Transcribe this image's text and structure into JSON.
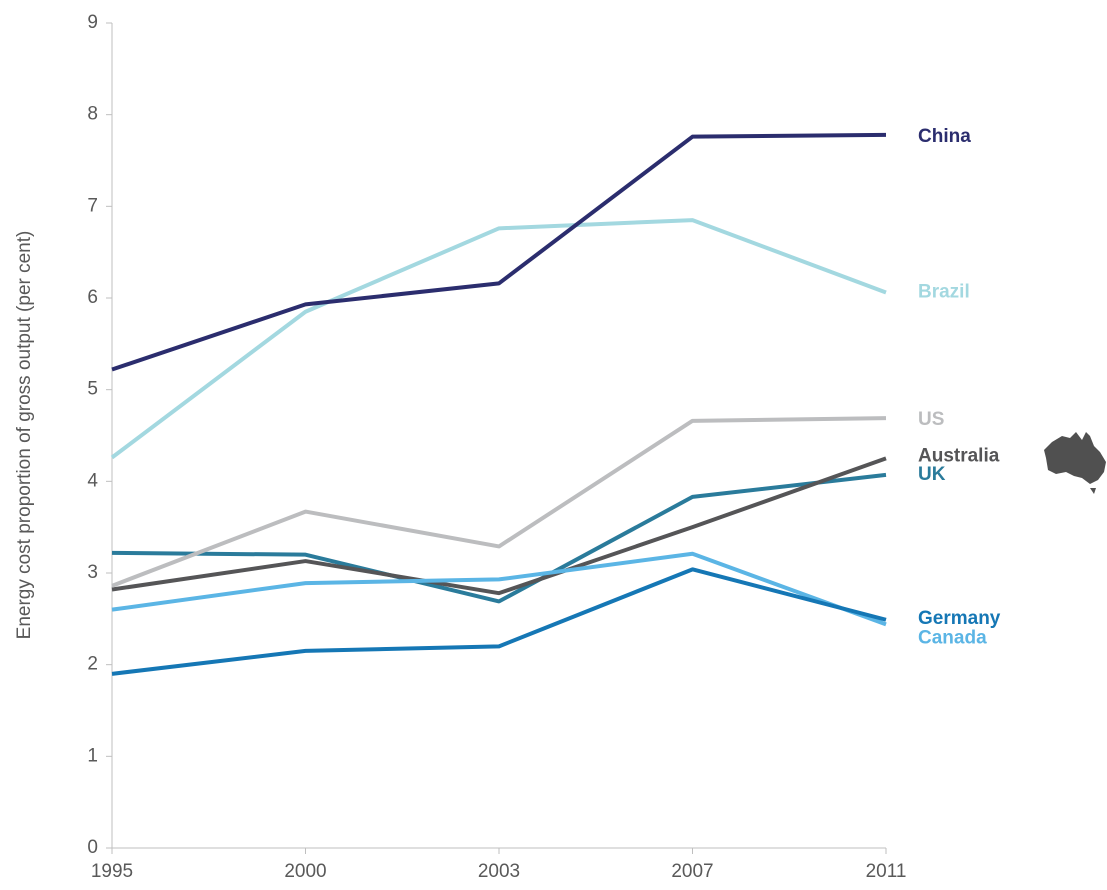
{
  "chart_data": {
    "type": "line",
    "y_label": "Energy cost proportion of gross output  (per cent)",
    "categories": [
      "1995",
      "2000",
      "2003",
      "2007",
      "2011"
    ],
    "series": [
      {
        "name": "China",
        "color": "#2b2d6e",
        "values": [
          5.22,
          5.93,
          6.16,
          7.76,
          7.78
        ]
      },
      {
        "name": "Brazil",
        "color": "#a3d8e0",
        "values": [
          4.26,
          5.85,
          6.76,
          6.85,
          6.06
        ]
      },
      {
        "name": "US",
        "color": "#bcbdbf",
        "values": [
          2.86,
          3.67,
          3.29,
          4.66,
          4.69
        ]
      },
      {
        "name": "Australia",
        "color": "#555557",
        "values": [
          2.82,
          3.13,
          2.78,
          3.5,
          4.25
        ]
      },
      {
        "name": "UK",
        "color": "#2a7b9b",
        "values": [
          3.22,
          3.2,
          2.69,
          3.83,
          4.07
        ]
      },
      {
        "name": "Germany",
        "color": "#1577b5",
        "values": [
          1.9,
          2.15,
          2.2,
          3.04,
          2.49
        ]
      },
      {
        "name": "Canada",
        "color": "#5bb5e5",
        "values": [
          2.6,
          2.89,
          2.93,
          3.21,
          2.44
        ]
      }
    ],
    "ylim": [
      0,
      9
    ],
    "yticks": [
      0,
      1,
      2,
      3,
      4,
      5,
      6,
      7,
      8,
      9
    ]
  }
}
